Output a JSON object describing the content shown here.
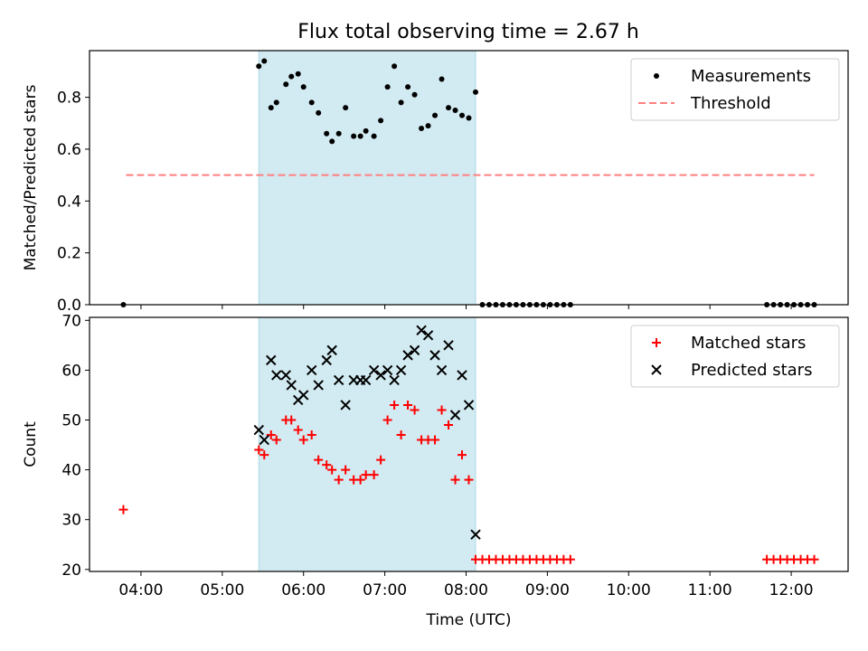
{
  "title": "Flux total observing time = 2.67 h",
  "colors": {
    "measurement": "#000000",
    "threshold": "#ff7f7f",
    "matched": "#ff0000",
    "predicted": "#000000",
    "observing_window": "#add8e6"
  },
  "chart_data": [
    {
      "type": "scatter",
      "ylabel": "Matched/Predicted stars",
      "ylim": [
        0,
        0.98
      ],
      "yticks": [
        0.0,
        0.2,
        0.4,
        0.6,
        0.8
      ],
      "ytick_labels": [
        "0.0",
        "0.2",
        "0.4",
        "0.6",
        "0.8"
      ],
      "xlim": [
        "03:22",
        "12:42"
      ],
      "shaded_range": [
        "05:27",
        "08:07"
      ],
      "legend": {
        "position": "top-right",
        "entries": [
          "Measurements",
          "Threshold"
        ]
      },
      "threshold": {
        "name": "Threshold",
        "value": 0.5,
        "x_range": [
          "03:49",
          "12:17"
        ]
      },
      "series": [
        {
          "name": "Measurements",
          "marker": "dot",
          "points": [
            [
              "03:47",
              0.0
            ],
            [
              "05:27",
              0.92
            ],
            [
              "05:31",
              0.94
            ],
            [
              "05:36",
              0.76
            ],
            [
              "05:40",
              0.78
            ],
            [
              "05:47",
              0.85
            ],
            [
              "05:51",
              0.88
            ],
            [
              "05:56",
              0.89
            ],
            [
              "06:00",
              0.84
            ],
            [
              "06:06",
              0.78
            ],
            [
              "06:11",
              0.74
            ],
            [
              "06:17",
              0.66
            ],
            [
              "06:21",
              0.63
            ],
            [
              "06:26",
              0.66
            ],
            [
              "06:31",
              0.76
            ],
            [
              "06:37",
              0.65
            ],
            [
              "06:42",
              0.65
            ],
            [
              "06:46",
              0.67
            ],
            [
              "06:52",
              0.65
            ],
            [
              "06:57",
              0.71
            ],
            [
              "07:02",
              0.84
            ],
            [
              "07:07",
              0.92
            ],
            [
              "07:12",
              0.78
            ],
            [
              "07:17",
              0.84
            ],
            [
              "07:22",
              0.81
            ],
            [
              "07:27",
              0.68
            ],
            [
              "07:32",
              0.69
            ],
            [
              "07:37",
              0.73
            ],
            [
              "07:42",
              0.87
            ],
            [
              "07:47",
              0.76
            ],
            [
              "07:52",
              0.75
            ],
            [
              "07:57",
              0.73
            ],
            [
              "08:02",
              0.72
            ],
            [
              "08:07",
              0.82
            ],
            [
              "08:12",
              0.0
            ],
            [
              "08:17",
              0.0
            ],
            [
              "08:22",
              0.0
            ],
            [
              "08:27",
              0.0
            ],
            [
              "08:32",
              0.0
            ],
            [
              "08:37",
              0.0
            ],
            [
              "08:42",
              0.0
            ],
            [
              "08:47",
              0.0
            ],
            [
              "08:52",
              0.0
            ],
            [
              "08:57",
              0.0
            ],
            [
              "09:02",
              0.0
            ],
            [
              "09:07",
              0.0
            ],
            [
              "09:12",
              0.0
            ],
            [
              "09:17",
              0.0
            ],
            [
              "11:42",
              0.0
            ],
            [
              "11:47",
              0.0
            ],
            [
              "11:52",
              0.0
            ],
            [
              "11:57",
              0.0
            ],
            [
              "12:02",
              0.0
            ],
            [
              "12:07",
              0.0
            ],
            [
              "12:12",
              0.0
            ],
            [
              "12:17",
              0.0
            ]
          ]
        }
      ]
    },
    {
      "type": "scatter",
      "xlabel": "Time (UTC)",
      "ylabel": "Count",
      "ylim": [
        19.6,
        70.6
      ],
      "yticks": [
        20,
        30,
        40,
        50,
        60,
        70
      ],
      "ytick_labels": [
        "20",
        "30",
        "40",
        "50",
        "60",
        "70"
      ],
      "xlim": [
        "03:22",
        "12:42"
      ],
      "xticks": [
        "04:00",
        "05:00",
        "06:00",
        "07:00",
        "08:00",
        "09:00",
        "10:00",
        "11:00",
        "12:00"
      ],
      "shaded_range": [
        "05:27",
        "08:07"
      ],
      "legend": {
        "position": "top-right",
        "entries": [
          "Matched stars",
          "Predicted stars"
        ]
      },
      "series": [
        {
          "name": "Matched stars",
          "marker": "plus",
          "points": [
            [
              "03:47",
              32
            ],
            [
              "05:27",
              44
            ],
            [
              "05:31",
              43
            ],
            [
              "05:36",
              47
            ],
            [
              "05:40",
              46
            ],
            [
              "05:47",
              50
            ],
            [
              "05:51",
              50
            ],
            [
              "05:56",
              48
            ],
            [
              "06:00",
              46
            ],
            [
              "06:06",
              47
            ],
            [
              "06:11",
              42
            ],
            [
              "06:17",
              41
            ],
            [
              "06:21",
              40
            ],
            [
              "06:26",
              38
            ],
            [
              "06:31",
              40
            ],
            [
              "06:37",
              38
            ],
            [
              "06:42",
              38
            ],
            [
              "06:46",
              39
            ],
            [
              "06:52",
              39
            ],
            [
              "06:57",
              42
            ],
            [
              "07:02",
              50
            ],
            [
              "07:07",
              53
            ],
            [
              "07:12",
              47
            ],
            [
              "07:17",
              53
            ],
            [
              "07:22",
              52
            ],
            [
              "07:27",
              46
            ],
            [
              "07:32",
              46
            ],
            [
              "07:37",
              46
            ],
            [
              "07:42",
              52
            ],
            [
              "07:47",
              49
            ],
            [
              "07:52",
              38
            ],
            [
              "07:57",
              43
            ],
            [
              "08:02",
              38
            ],
            [
              "08:07",
              22
            ],
            [
              "08:12",
              22
            ],
            [
              "08:17",
              22
            ],
            [
              "08:22",
              22
            ],
            [
              "08:27",
              22
            ],
            [
              "08:32",
              22
            ],
            [
              "08:37",
              22
            ],
            [
              "08:42",
              22
            ],
            [
              "08:47",
              22
            ],
            [
              "08:52",
              22
            ],
            [
              "08:57",
              22
            ],
            [
              "09:02",
              22
            ],
            [
              "09:07",
              22
            ],
            [
              "09:12",
              22
            ],
            [
              "09:17",
              22
            ],
            [
              "11:42",
              22
            ],
            [
              "11:47",
              22
            ],
            [
              "11:52",
              22
            ],
            [
              "11:57",
              22
            ],
            [
              "12:02",
              22
            ],
            [
              "12:07",
              22
            ],
            [
              "12:12",
              22
            ],
            [
              "12:17",
              22
            ]
          ]
        },
        {
          "name": "Predicted stars",
          "marker": "x",
          "points": [
            [
              "05:27",
              48
            ],
            [
              "05:31",
              46
            ],
            [
              "05:36",
              62
            ],
            [
              "05:40",
              59
            ],
            [
              "05:47",
              59
            ],
            [
              "05:51",
              57
            ],
            [
              "05:56",
              54
            ],
            [
              "06:00",
              55
            ],
            [
              "06:06",
              60
            ],
            [
              "06:11",
              57
            ],
            [
              "06:17",
              62
            ],
            [
              "06:21",
              64
            ],
            [
              "06:26",
              58
            ],
            [
              "06:31",
              53
            ],
            [
              "06:37",
              58
            ],
            [
              "06:42",
              58
            ],
            [
              "06:46",
              58
            ],
            [
              "06:52",
              60
            ],
            [
              "06:57",
              59
            ],
            [
              "07:02",
              60
            ],
            [
              "07:07",
              58
            ],
            [
              "07:12",
              60
            ],
            [
              "07:17",
              63
            ],
            [
              "07:22",
              64
            ],
            [
              "07:27",
              68
            ],
            [
              "07:32",
              67
            ],
            [
              "07:37",
              63
            ],
            [
              "07:42",
              60
            ],
            [
              "07:47",
              65
            ],
            [
              "07:52",
              51
            ],
            [
              "07:57",
              59
            ],
            [
              "08:02",
              53
            ],
            [
              "08:07",
              27
            ]
          ]
        }
      ]
    }
  ]
}
